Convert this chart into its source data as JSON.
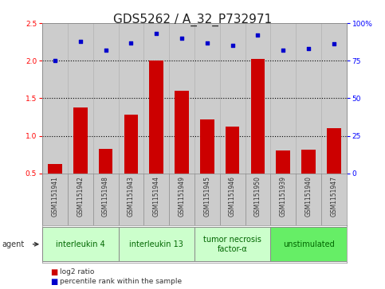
{
  "title": "GDS5262 / A_32_P732971",
  "samples": [
    "GSM1151941",
    "GSM1151942",
    "GSM1151948",
    "GSM1151943",
    "GSM1151944",
    "GSM1151949",
    "GSM1151945",
    "GSM1151946",
    "GSM1151950",
    "GSM1151939",
    "GSM1151940",
    "GSM1151947"
  ],
  "log2_ratio": [
    0.62,
    1.38,
    0.83,
    1.28,
    2.0,
    1.6,
    1.22,
    1.12,
    2.02,
    0.8,
    0.82,
    1.1
  ],
  "percentile": [
    75,
    88,
    82,
    87,
    93,
    90,
    87,
    85,
    92,
    82,
    83,
    86
  ],
  "bar_color": "#cc0000",
  "dot_color": "#0000cc",
  "ylim_left": [
    0.5,
    2.5
  ],
  "ylim_right": [
    0,
    100
  ],
  "yticks_left": [
    0.5,
    1.0,
    1.5,
    2.0,
    2.5
  ],
  "yticks_right": [
    0,
    25,
    50,
    75,
    100
  ],
  "ytick_labels_right": [
    "0",
    "25",
    "50",
    "75",
    "100%"
  ],
  "groups": [
    {
      "label": "interleukin 4",
      "start": 0,
      "end": 3,
      "color": "#ccffcc"
    },
    {
      "label": "interleukin 13",
      "start": 3,
      "end": 6,
      "color": "#ccffcc"
    },
    {
      "label": "tumor necrosis\nfactor-α",
      "start": 6,
      "end": 9,
      "color": "#ccffcc"
    },
    {
      "label": "unstimulated",
      "start": 9,
      "end": 12,
      "color": "#66ee66"
    }
  ],
  "agent_label": "agent",
  "legend_bar_label": "log2 ratio",
  "legend_dot_label": "percentile rank within the sample",
  "plot_bg_color": "#cccccc",
  "title_fontsize": 11,
  "tick_fontsize": 6.5,
  "sample_fontsize": 5.5,
  "group_fontsize": 7
}
